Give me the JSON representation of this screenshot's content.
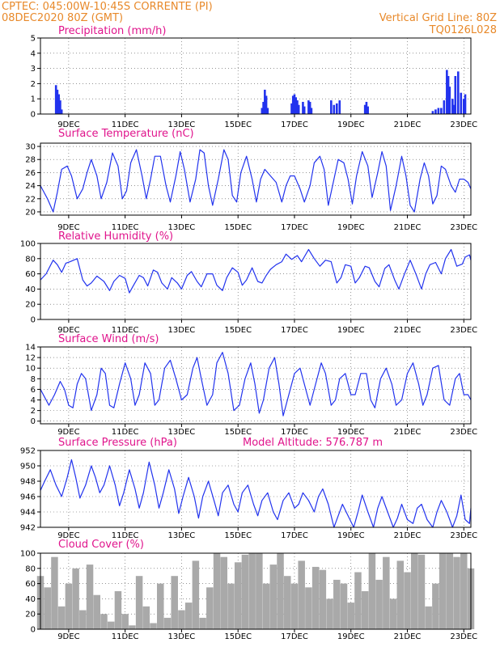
{
  "header": {
    "line1": "CPTEC:    045:00W-10:45S    CORRENTE (PI)",
    "line2": "08DEC2020 80Z (GMT)",
    "grid_note": "Vertical Grid Line: 80Z",
    "code": "TQ0126L028"
  },
  "colors": {
    "line": "#2233ee",
    "bar": "#2233ee",
    "cloud": "#a9a9a9",
    "title": "#e0148c",
    "header": "#e8892a"
  },
  "x_ticks": [
    "9DEC",
    "11DEC",
    "13DEC",
    "15DEC",
    "17DEC",
    "19DEC",
    "21DEC",
    "23DEC"
  ],
  "chart_data": [
    {
      "type": "bar",
      "title": "Precipitation  (mm/h)",
      "ylim": [
        0,
        5
      ],
      "yticks": [
        0,
        1,
        2,
        3,
        4,
        5
      ],
      "x": [
        0.55,
        0.6,
        0.65,
        0.7,
        0.75,
        7.85,
        7.9,
        7.95,
        8.0,
        8.05,
        8.9,
        8.95,
        9.0,
        9.05,
        9.1,
        9.15,
        9.3,
        9.35,
        9.5,
        9.55,
        9.6,
        10.3,
        10.4,
        10.5,
        10.6,
        11.5,
        11.55,
        11.6,
        13.9,
        14.0,
        14.1,
        14.2,
        14.3,
        14.4,
        14.45,
        14.5,
        14.6,
        14.65,
        14.7,
        14.8,
        14.9,
        15.0,
        15.05
      ],
      "values": [
        1.9,
        1.6,
        1.3,
        0.9,
        0.3,
        0.4,
        0.8,
        1.6,
        1.2,
        0.4,
        0.7,
        1.2,
        1.3,
        1.1,
        0.9,
        0.6,
        0.8,
        0.5,
        0.9,
        0.8,
        0.4,
        0.9,
        0.6,
        0.7,
        0.9,
        0.6,
        0.8,
        0.5,
        0.2,
        0.3,
        0.4,
        0.4,
        0.9,
        2.9,
        2.5,
        1.8,
        1.0,
        0.6,
        2.5,
        2.8,
        1.4,
        1.0,
        1.3
      ]
    },
    {
      "type": "line",
      "title": "Surface Temperature  (nC)",
      "ylim": [
        19.5,
        30.5
      ],
      "yticks": [
        20,
        22,
        24,
        26,
        28,
        30
      ],
      "x": [
        0,
        0.1,
        0.25,
        0.45,
        0.6,
        0.75,
        0.95,
        1.1,
        1.3,
        1.5,
        1.65,
        1.8,
        2.0,
        2.15,
        2.35,
        2.55,
        2.75,
        2.9,
        3.05,
        3.2,
        3.4,
        3.6,
        3.75,
        3.9,
        4.05,
        4.25,
        4.45,
        4.6,
        4.8,
        4.95,
        5.1,
        5.3,
        5.5,
        5.65,
        5.8,
        5.95,
        6.1,
        6.3,
        6.5,
        6.65,
        6.8,
        6.95,
        7.1,
        7.3,
        7.5,
        7.65,
        7.8,
        7.95,
        8.15,
        8.35,
        8.55,
        8.7,
        8.85,
        9.0,
        9.2,
        9.35,
        9.55,
        9.7,
        9.9,
        10.05,
        10.2,
        10.4,
        10.55,
        10.75,
        10.9,
        11.05,
        11.2,
        11.4,
        11.6,
        11.75,
        11.95,
        12.1,
        12.25,
        12.4,
        12.6,
        12.8,
        12.95,
        13.1,
        13.25,
        13.45,
        13.6,
        13.75,
        13.9,
        14.05,
        14.2,
        14.35,
        14.55,
        14.7,
        14.85,
        15.0,
        15.15,
        15.25
      ],
      "values": [
        24,
        23.2,
        22,
        20,
        23,
        26.5,
        27,
        25.5,
        22,
        23.5,
        26,
        28,
        25.5,
        22,
        24.5,
        29,
        27,
        22,
        23.2,
        27.5,
        29.5,
        25.5,
        22,
        25,
        28.5,
        28.5,
        24,
        21.5,
        25.5,
        29.2,
        26.5,
        21.5,
        25,
        29.5,
        29,
        24,
        21,
        25,
        29.5,
        28,
        22.5,
        21.5,
        26,
        28.5,
        25,
        21.5,
        25,
        26.5,
        25.5,
        24.5,
        21.5,
        24,
        25.5,
        25.5,
        23.5,
        21.5,
        24,
        27.5,
        28.5,
        26.5,
        21,
        25,
        28,
        27.5,
        25,
        21.2,
        25.5,
        29.2,
        27,
        22.2,
        26,
        29.2,
        27,
        20.2,
        24,
        28.5,
        25.5,
        21,
        20,
        25,
        27.5,
        25.5,
        21.2,
        22.5,
        27,
        26.5,
        24,
        23,
        25,
        25,
        24.5,
        23.5
      ]
    },
    {
      "type": "line",
      "title": "Relative Humidity  (%)",
      "ylim": [
        0,
        100
      ],
      "yticks": [
        0,
        20,
        40,
        60,
        80,
        100
      ],
      "x": [
        0,
        0.2,
        0.45,
        0.6,
        0.75,
        0.9,
        1.05,
        1.3,
        1.5,
        1.65,
        1.8,
        2.0,
        2.25,
        2.45,
        2.6,
        2.8,
        3.0,
        3.15,
        3.3,
        3.5,
        3.65,
        3.8,
        4.0,
        4.15,
        4.3,
        4.5,
        4.65,
        4.85,
        5.0,
        5.2,
        5.35,
        5.55,
        5.7,
        5.9,
        6.1,
        6.25,
        6.45,
        6.6,
        6.8,
        7.0,
        7.15,
        7.3,
        7.5,
        7.7,
        7.85,
        8.0,
        8.15,
        8.35,
        8.55,
        8.7,
        8.9,
        9.1,
        9.25,
        9.5,
        9.7,
        9.9,
        10.1,
        10.3,
        10.5,
        10.65,
        10.8,
        11.0,
        11.15,
        11.3,
        11.5,
        11.65,
        11.85,
        12.0,
        12.2,
        12.35,
        12.55,
        12.7,
        12.9,
        13.1,
        13.3,
        13.5,
        13.65,
        13.8,
        14.0,
        14.2,
        14.35,
        14.55,
        14.75,
        14.95,
        15.05,
        15.2,
        15.25
      ],
      "values": [
        52,
        60,
        78,
        72,
        62,
        74,
        76,
        80,
        52,
        44,
        48,
        57,
        50,
        38,
        50,
        58,
        54,
        35,
        45,
        58,
        55,
        44,
        65,
        62,
        48,
        40,
        55,
        48,
        40,
        58,
        63,
        50,
        43,
        60,
        60,
        45,
        38,
        55,
        68,
        62,
        45,
        52,
        68,
        50,
        48,
        58,
        66,
        72,
        76,
        86,
        79,
        84,
        76,
        92,
        80,
        70,
        78,
        76,
        48,
        55,
        72,
        70,
        48,
        55,
        70,
        68,
        50,
        43,
        67,
        72,
        52,
        40,
        60,
        78,
        60,
        40,
        60,
        72,
        75,
        60,
        80,
        92,
        70,
        73,
        82,
        85,
        78
      ]
    },
    {
      "type": "line",
      "title": "Surface Wind  (m/s)",
      "ylim": [
        -0.5,
        14
      ],
      "yticks": [
        0,
        2,
        4,
        6,
        8,
        10,
        12,
        14
      ],
      "x": [
        0,
        0.15,
        0.3,
        0.5,
        0.7,
        0.85,
        1.0,
        1.15,
        1.3,
        1.45,
        1.6,
        1.8,
        2.0,
        2.15,
        2.3,
        2.45,
        2.6,
        2.8,
        3.0,
        3.2,
        3.35,
        3.5,
        3.7,
        3.9,
        4.05,
        4.2,
        4.4,
        4.6,
        4.8,
        5.0,
        5.2,
        5.4,
        5.55,
        5.7,
        5.9,
        6.1,
        6.25,
        6.45,
        6.65,
        6.85,
        7.05,
        7.25,
        7.45,
        7.6,
        7.75,
        7.9,
        8.1,
        8.3,
        8.45,
        8.6,
        8.8,
        9.0,
        9.2,
        9.4,
        9.55,
        9.75,
        9.95,
        10.1,
        10.3,
        10.45,
        10.6,
        10.8,
        11.0,
        11.15,
        11.35,
        11.55,
        11.7,
        11.85,
        12.05,
        12.25,
        12.45,
        12.6,
        12.8,
        13.0,
        13.2,
        13.4,
        13.55,
        13.7,
        13.9,
        14.1,
        14.3,
        14.5,
        14.7,
        14.85,
        15.0,
        15.15,
        15.25
      ],
      "values": [
        6,
        4.5,
        3,
        5,
        7.5,
        6,
        3,
        2.5,
        7,
        9,
        8,
        2,
        5,
        10,
        9,
        3,
        2.5,
        7,
        11,
        8,
        3,
        5,
        11,
        9,
        3,
        4,
        10,
        11.5,
        8,
        4,
        5,
        10,
        12,
        8,
        3,
        5,
        11,
        13,
        9,
        2,
        3,
        8,
        11,
        7,
        1.5,
        4,
        10,
        12,
        7,
        1,
        5,
        9,
        10,
        6,
        3,
        7,
        11,
        9,
        3,
        4,
        8,
        9,
        5,
        5,
        9,
        9,
        4,
        2.5,
        8,
        10,
        7,
        3,
        4,
        9,
        11,
        7,
        3,
        5,
        10,
        10.5,
        4,
        3,
        8,
        9,
        5,
        5,
        4
      ]
    },
    {
      "type": "line",
      "title": "Surface Pressure  (hPa)",
      "subtitle": "Model Altitude:  576.787  m",
      "ylim": [
        942,
        952
      ],
      "yticks": [
        942,
        944,
        946,
        948,
        950,
        952
      ],
      "x": [
        0,
        0.15,
        0.35,
        0.55,
        0.75,
        0.95,
        1.1,
        1.25,
        1.4,
        1.6,
        1.8,
        1.95,
        2.1,
        2.25,
        2.45,
        2.65,
        2.8,
        2.95,
        3.15,
        3.35,
        3.5,
        3.65,
        3.85,
        4.05,
        4.2,
        4.35,
        4.55,
        4.75,
        4.9,
        5.05,
        5.25,
        5.45,
        5.6,
        5.75,
        5.95,
        6.15,
        6.3,
        6.45,
        6.65,
        6.85,
        7.0,
        7.15,
        7.35,
        7.55,
        7.7,
        7.85,
        8.05,
        8.25,
        8.4,
        8.6,
        8.8,
        9.0,
        9.15,
        9.3,
        9.5,
        9.7,
        9.85,
        10.0,
        10.2,
        10.4,
        10.55,
        10.7,
        10.9,
        11.1,
        11.25,
        11.4,
        11.6,
        11.8,
        11.95,
        12.1,
        12.3,
        12.5,
        12.65,
        12.8,
        13.0,
        13.2,
        13.35,
        13.5,
        13.7,
        13.9,
        14.05,
        14.2,
        14.4,
        14.6,
        14.75,
        14.9,
        15.05,
        15.2,
        15.25
      ],
      "values": [
        946.8,
        948,
        949.5,
        947.5,
        946,
        948.5,
        950.8,
        948.5,
        945.8,
        947.5,
        950,
        948.5,
        946.5,
        947.5,
        950,
        947.5,
        944.8,
        946.5,
        949.5,
        947,
        944.5,
        946.5,
        950.5,
        947.5,
        944.5,
        946.5,
        949.5,
        947,
        943.8,
        946,
        948.5,
        946,
        943.2,
        946,
        948,
        945.5,
        943.5,
        946.5,
        947.5,
        945,
        944,
        946.5,
        947.5,
        945,
        943.5,
        945.5,
        946.5,
        944,
        943,
        945.5,
        946.5,
        944.5,
        945,
        946.5,
        945.5,
        944,
        946,
        947,
        945,
        941.8,
        943.5,
        945,
        943.5,
        941.8,
        944,
        946.2,
        944,
        941.8,
        944.5,
        946,
        944,
        941.5,
        943.2,
        945,
        943,
        942.5,
        944.5,
        945,
        943,
        941.8,
        944,
        945.5,
        944,
        942,
        943.5,
        946.2,
        943,
        942.5,
        944.5
      ]
    },
    {
      "type": "bar",
      "title": "Cloud Cover  (%)",
      "ylim": [
        0,
        100
      ],
      "yticks": [
        0,
        20,
        40,
        60,
        80,
        100
      ],
      "x": [
        0,
        0.25,
        0.5,
        0.75,
        1,
        1.25,
        1.5,
        1.75,
        2,
        2.25,
        2.5,
        2.75,
        3,
        3.25,
        3.5,
        3.75,
        4,
        4.25,
        4.5,
        4.75,
        5,
        5.25,
        5.5,
        5.75,
        6,
        6.25,
        6.5,
        6.75,
        7,
        7.25,
        7.5,
        7.75,
        8,
        8.25,
        8.5,
        8.75,
        9,
        9.25,
        9.5,
        9.75,
        10,
        10.25,
        10.5,
        10.75,
        11,
        11.25,
        11.5,
        11.75,
        12,
        12.25,
        12.5,
        12.75,
        13,
        13.25,
        13.5,
        13.75,
        14,
        14.25,
        14.5,
        14.75,
        15,
        15.25
      ],
      "values": [
        70,
        55,
        95,
        30,
        60,
        80,
        25,
        85,
        45,
        20,
        10,
        50,
        20,
        5,
        70,
        30,
        8,
        60,
        15,
        70,
        25,
        35,
        90,
        15,
        55,
        100,
        95,
        60,
        88,
        98,
        100,
        100,
        60,
        85,
        100,
        70,
        60,
        90,
        55,
        82,
        78,
        40,
        65,
        60,
        35,
        75,
        50,
        100,
        65,
        95,
        40,
        90,
        75,
        100,
        98,
        30,
        60,
        100,
        100,
        95,
        100,
        80
      ]
    }
  ]
}
